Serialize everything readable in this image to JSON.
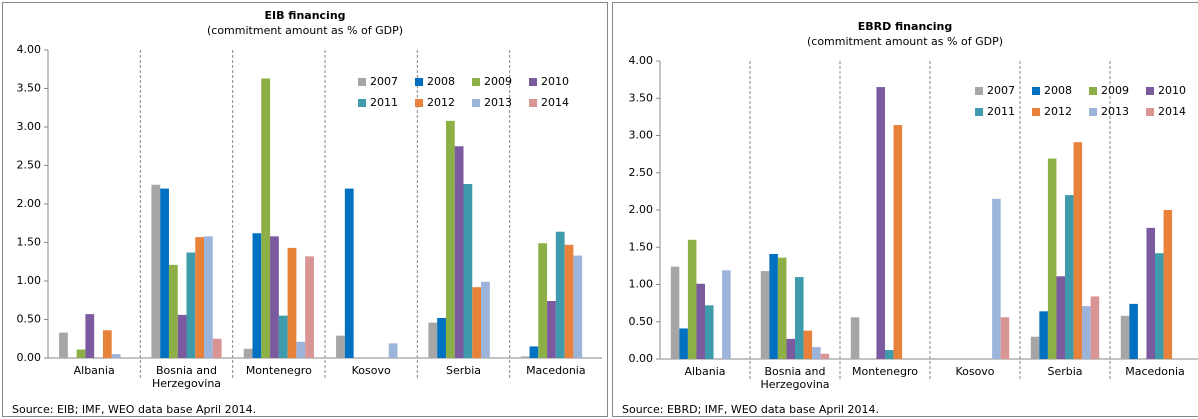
{
  "chart_data": [
    {
      "type": "bar",
      "title": "EIB financing",
      "subtitle": "(commitment amount as % of GDP)",
      "categories": [
        "Albania",
        "Bosnia and Herzegovina",
        "Montenegro",
        "Kosovo",
        "Serbia",
        "Macedonia"
      ],
      "series": [
        {
          "name": "2007",
          "color": "#a6a6a6",
          "values": [
            0.33,
            2.25,
            0.12,
            0.29,
            0.46,
            0.02
          ]
        },
        {
          "name": "2008",
          "color": "#0070c0",
          "values": [
            0,
            2.2,
            1.62,
            2.2,
            0.52,
            0.15
          ]
        },
        {
          "name": "2009",
          "color": "#8cb045",
          "values": [
            0.11,
            1.21,
            3.63,
            0,
            3.08,
            1.49
          ]
        },
        {
          "name": "2010",
          "color": "#7b5a9f",
          "values": [
            0.57,
            0.56,
            1.58,
            0,
            2.75,
            0.74
          ]
        },
        {
          "name": "2011",
          "color": "#3e9bab",
          "values": [
            0,
            1.37,
            0.55,
            0,
            2.26,
            1.64
          ]
        },
        {
          "name": "2012",
          "color": "#e8823a",
          "values": [
            0.36,
            1.57,
            1.43,
            0,
            0.92,
            1.47
          ]
        },
        {
          "name": "2013",
          "color": "#9db4da",
          "values": [
            0.05,
            1.58,
            0.21,
            0.19,
            0.99,
            1.33
          ]
        },
        {
          "name": "2014",
          "color": "#d99494",
          "values": [
            0,
            0.25,
            1.32,
            0,
            0,
            0
          ]
        }
      ],
      "ylim": [
        0,
        4
      ],
      "yticks": [
        {
          "value": 0,
          "label": "0.00"
        },
        {
          "value": 0.5,
          "label": "0.50"
        },
        {
          "value": 1,
          "label": "1.00"
        },
        {
          "value": 1.5,
          "label": "1.50"
        },
        {
          "value": 2,
          "label": "2.00"
        },
        {
          "value": 2.5,
          "label": "2.50"
        },
        {
          "value": 3,
          "label": "3.00"
        },
        {
          "value": 3.5,
          "label": "3.50"
        },
        {
          "value": 4,
          "label": "4.00"
        }
      ],
      "source": "Source: EIB; IMF, WEO data base April 2014."
    },
    {
      "type": "bar",
      "title": "EBRD financing",
      "subtitle": "(commitment amount as % of GDP)",
      "categories": [
        "Albania",
        "Bosnia and Herzegovina",
        "Montenegro",
        "Kosovo",
        "Serbia",
        "Macedonia"
      ],
      "series": [
        {
          "name": "2007",
          "color": "#a6a6a6",
          "values": [
            1.24,
            1.18,
            0.56,
            0,
            0.3,
            0.58
          ]
        },
        {
          "name": "2008",
          "color": "#0070c0",
          "values": [
            0.41,
            1.41,
            0,
            0,
            0.64,
            0.74
          ]
        },
        {
          "name": "2009",
          "color": "#8cb045",
          "values": [
            1.6,
            1.36,
            0,
            0,
            2.69,
            0
          ]
        },
        {
          "name": "2010",
          "color": "#7b5a9f",
          "values": [
            1.01,
            0.27,
            3.65,
            0,
            1.11,
            1.76
          ]
        },
        {
          "name": "2011",
          "color": "#3e9bab",
          "values": [
            0.72,
            1.1,
            0.12,
            0,
            2.2,
            1.42
          ]
        },
        {
          "name": "2012",
          "color": "#e8823a",
          "values": [
            0,
            0.38,
            3.14,
            0,
            2.91,
            2.0
          ]
        },
        {
          "name": "2013",
          "color": "#9db4da",
          "values": [
            1.19,
            0.16,
            0,
            2.15,
            0.71,
            0
          ]
        },
        {
          "name": "2014",
          "color": "#d99494",
          "values": [
            0,
            0.07,
            0,
            0.56,
            0.84,
            0
          ]
        }
      ],
      "ylim": [
        0,
        4
      ],
      "yticks": [
        {
          "value": 0,
          "label": "0.00"
        },
        {
          "value": 0.5,
          "label": "0.50"
        },
        {
          "value": 1,
          "label": "1.00"
        },
        {
          "value": 1.5,
          "label": "1.50"
        },
        {
          "value": 2,
          "label": "2.00"
        },
        {
          "value": 2.5,
          "label": "2.50"
        },
        {
          "value": 3,
          "label": "3.00"
        },
        {
          "value": 3.5,
          "label": "3.50"
        },
        {
          "value": 4,
          "label": "4.00"
        }
      ],
      "source": "Source: EBRD; IMF, WEO data base April 2014."
    }
  ]
}
